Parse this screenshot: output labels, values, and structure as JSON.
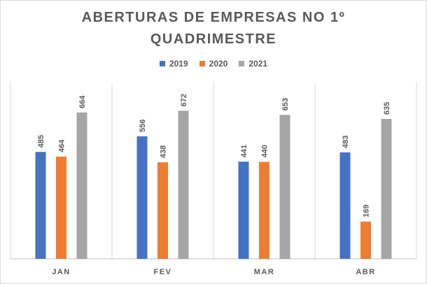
{
  "chart_data": {
    "type": "bar",
    "title_lines": [
      "ABERTURAS DE EMPRESAS NO 1º",
      "QUADRIMESTRE"
    ],
    "categories": [
      "JAN",
      "FEV",
      "MAR",
      "ABR"
    ],
    "series": [
      {
        "name": "2019",
        "values": [
          485,
          556,
          441,
          483
        ],
        "color": "#4472c4"
      },
      {
        "name": "2020",
        "values": [
          464,
          438,
          440,
          169
        ],
        "color": "#ed7d31"
      },
      {
        "name": "2021",
        "values": [
          664,
          672,
          653,
          635
        ],
        "color": "#a5a5a5"
      }
    ],
    "xlabel": "",
    "ylabel": "",
    "ylim": [
      0,
      800
    ],
    "legend_position": "top",
    "y_axis_visible": false,
    "vertical_gridlines": true,
    "data_labels": true
  }
}
